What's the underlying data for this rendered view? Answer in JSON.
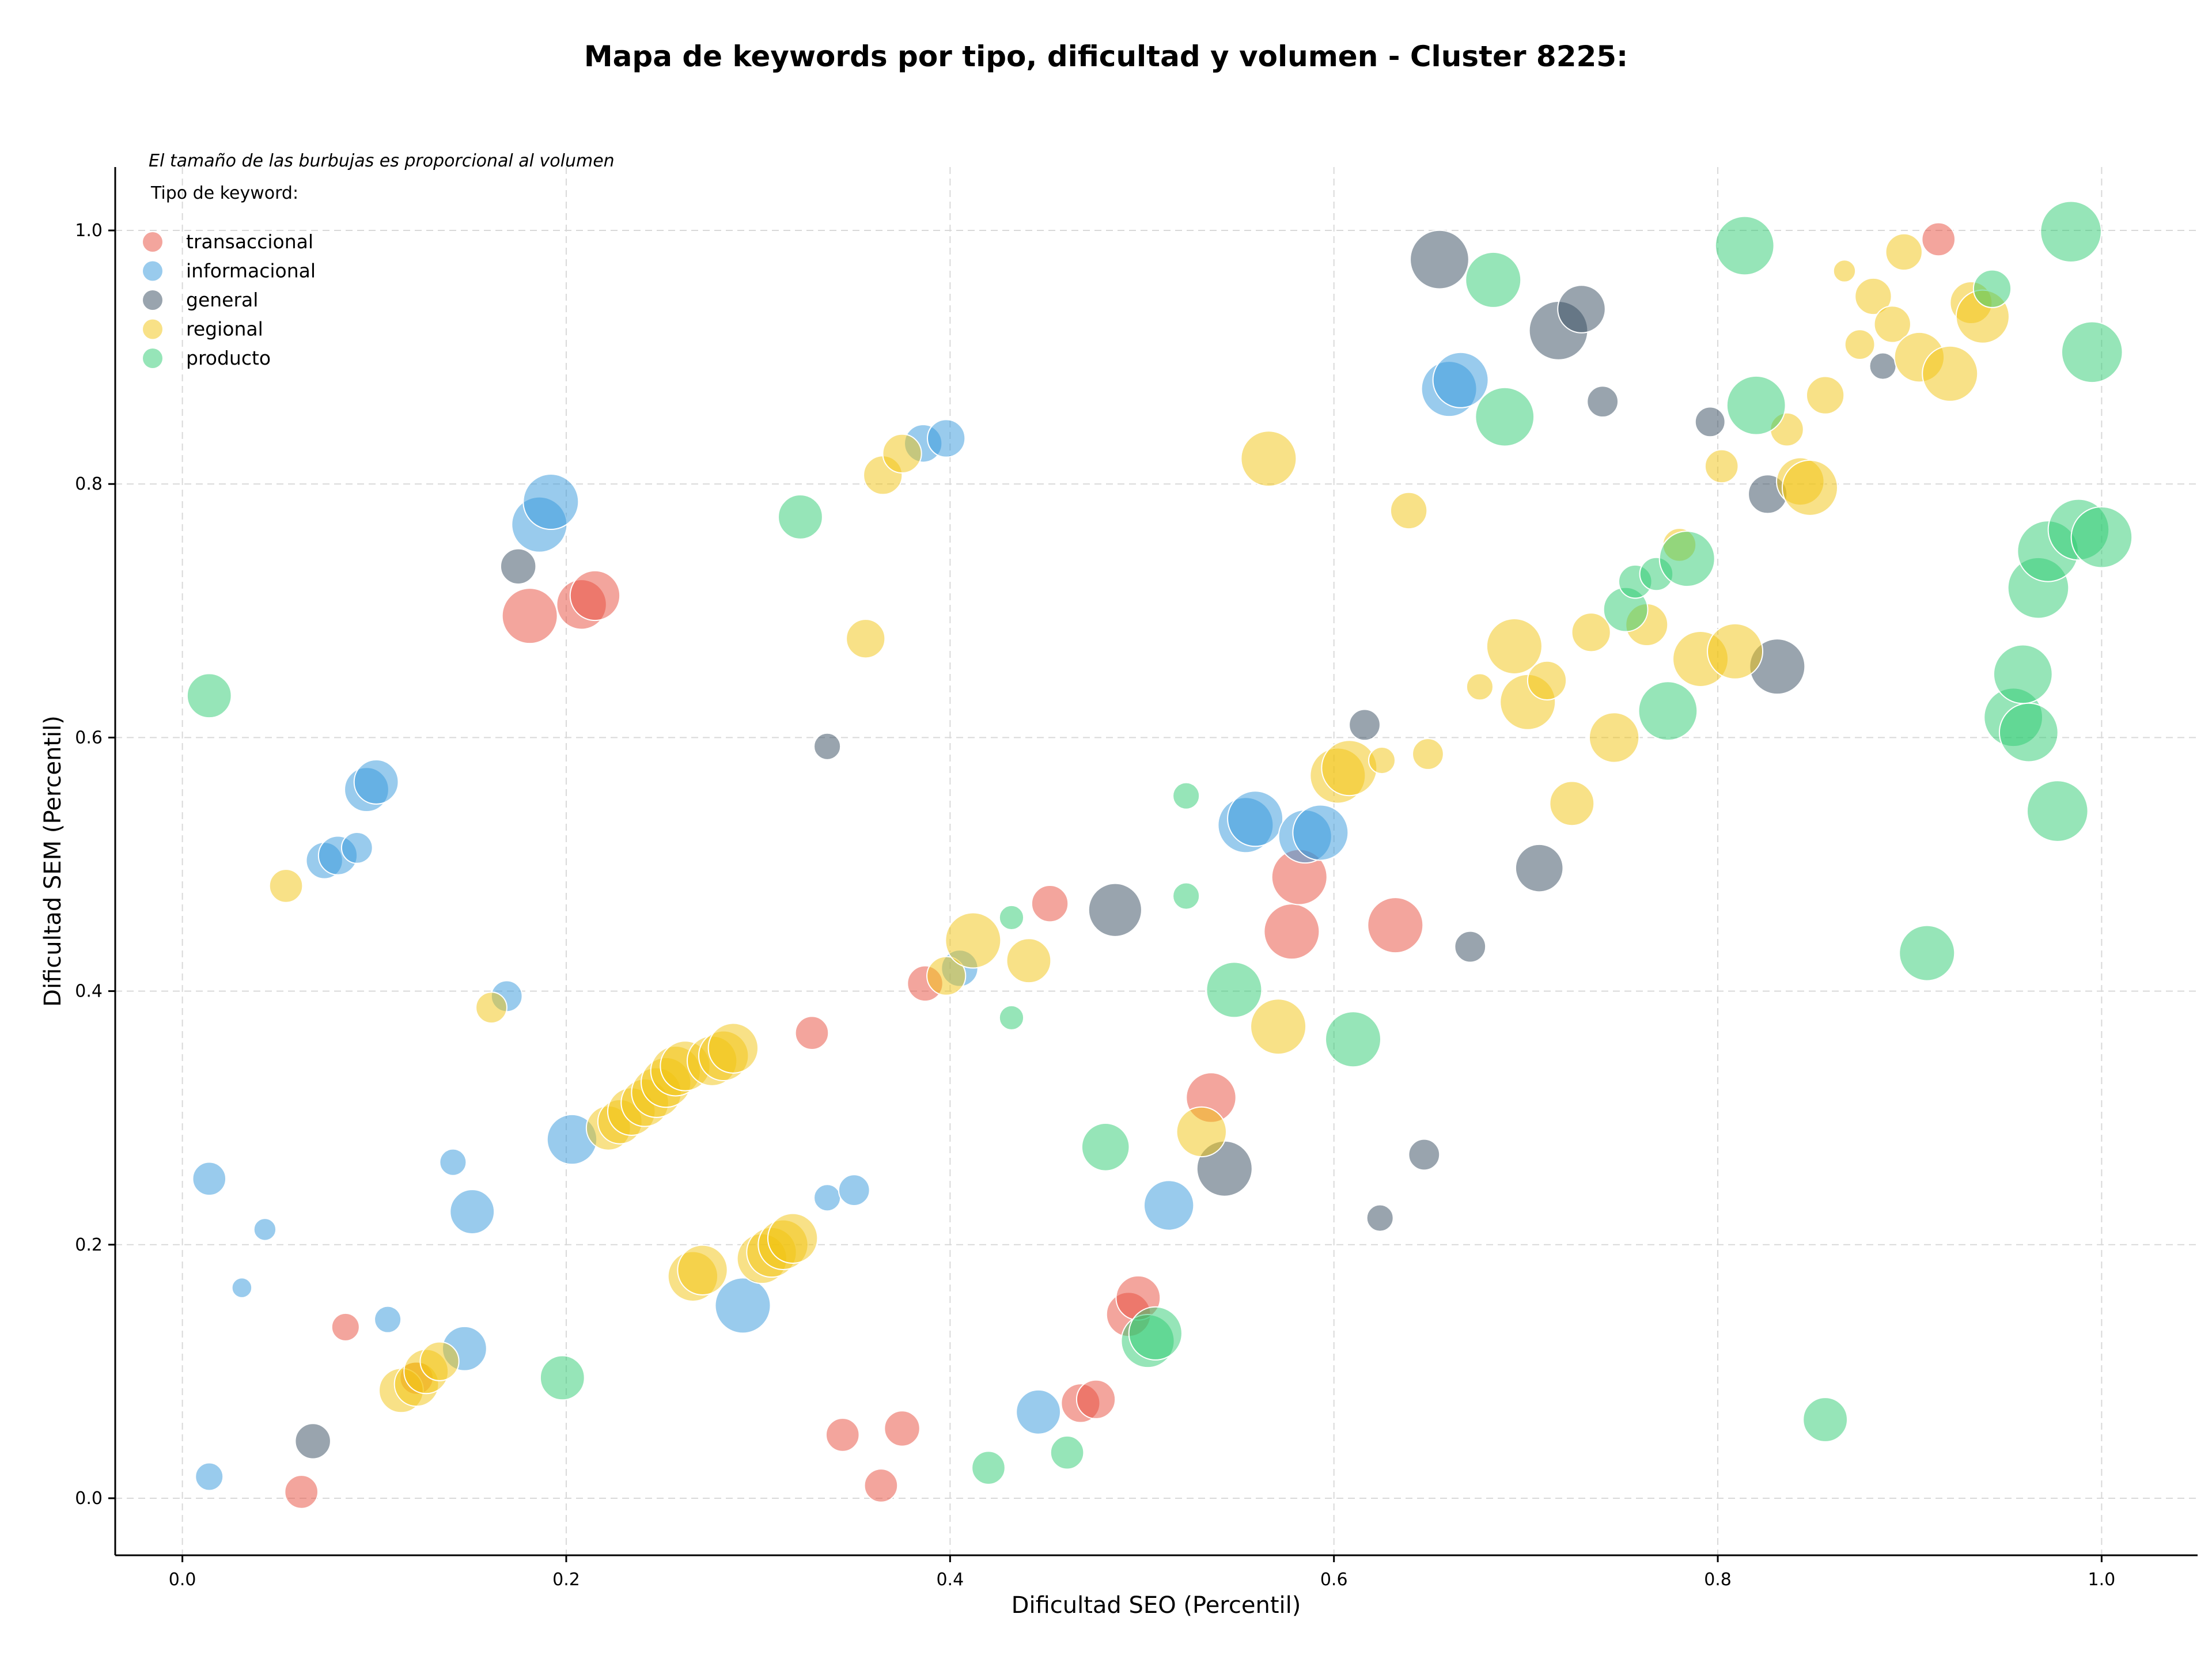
{
  "chart_data": {
    "type": "scatter",
    "title": "Mapa de keywords por tipo, dificultad y volumen - Cluster 8225:",
    "xlabel": "Dificultad SEO (Percentil)",
    "ylabel": "Dificultad SEM (Percentil)",
    "xlim": [
      -0.035,
      1.05
    ],
    "ylim": [
      -0.045,
      1.05
    ],
    "xticks": [
      0.0,
      0.2,
      0.4,
      0.6,
      0.8,
      1.0
    ],
    "yticks": [
      0.0,
      0.2,
      0.4,
      0.6,
      0.8,
      1.0
    ],
    "xtick_labels": [
      "0.0",
      "0.2",
      "0.4",
      "0.6",
      "0.8",
      "1.0"
    ],
    "ytick_labels": [
      "0.0",
      "0.2",
      "0.4",
      "0.6",
      "0.8",
      "1.0"
    ],
    "grid": true,
    "legend_placement": "top-left",
    "legend_note": "El tamaño de las burbujas es proporcional al volumen",
    "legend_title": "Tipo de keyword:",
    "series": [
      {
        "name": "transaccional",
        "color": "#e74c3c",
        "points": [
          [
            0.181,
            0.696,
            5
          ],
          [
            0.208,
            0.705,
            4.5
          ],
          [
            0.215,
            0.712,
            4.5
          ],
          [
            0.062,
            0.005,
            3
          ],
          [
            0.085,
            0.135,
            2.5
          ],
          [
            0.122,
            0.095,
            3
          ],
          [
            0.328,
            0.367,
            3
          ],
          [
            0.344,
            0.05,
            3
          ],
          [
            0.364,
            0.01,
            3
          ],
          [
            0.375,
            0.055,
            3.2
          ],
          [
            0.387,
            0.406,
            3.2
          ],
          [
            0.452,
            0.469,
            3.3
          ],
          [
            0.468,
            0.075,
            3.5
          ],
          [
            0.476,
            0.078,
            3.5
          ],
          [
            0.493,
            0.145,
            4
          ],
          [
            0.498,
            0.158,
            4
          ],
          [
            0.536,
            0.316,
            4.5
          ],
          [
            0.578,
            0.447,
            5
          ],
          [
            0.582,
            0.49,
            5
          ],
          [
            0.632,
            0.452,
            5
          ],
          [
            0.915,
            0.993,
            3
          ]
        ]
      },
      {
        "name": "informacional",
        "color": "#3498db",
        "points": [
          [
            0.014,
            0.017,
            2.5
          ],
          [
            0.014,
            0.252,
            3
          ],
          [
            0.043,
            0.212,
            2
          ],
          [
            0.031,
            0.166,
            1.8
          ],
          [
            0.074,
            0.503,
            3.3
          ],
          [
            0.081,
            0.507,
            3.5
          ],
          [
            0.091,
            0.513,
            2.8
          ],
          [
            0.096,
            0.559,
            4
          ],
          [
            0.101,
            0.565,
            4
          ],
          [
            0.107,
            0.141,
            2.4
          ],
          [
            0.141,
            0.265,
            2.4
          ],
          [
            0.151,
            0.226,
            4
          ],
          [
            0.147,
            0.118,
            4
          ],
          [
            0.169,
            0.396,
            2.8
          ],
          [
            0.186,
            0.768,
            5
          ],
          [
            0.192,
            0.786,
            5
          ],
          [
            0.203,
            0.283,
            4.5
          ],
          [
            0.292,
            0.152,
            5
          ],
          [
            0.336,
            0.237,
            2.4
          ],
          [
            0.35,
            0.243,
            2.8
          ],
          [
            0.386,
            0.832,
            3.4
          ],
          [
            0.398,
            0.836,
            3.4
          ],
          [
            0.405,
            0.418,
            3.3
          ],
          [
            0.446,
            0.068,
            4
          ],
          [
            0.514,
            0.231,
            4.5
          ],
          [
            0.554,
            0.531,
            5
          ],
          [
            0.559,
            0.536,
            5
          ],
          [
            0.585,
            0.522,
            4.8
          ],
          [
            0.593,
            0.525,
            5
          ],
          [
            0.66,
            0.875,
            5
          ],
          [
            0.666,
            0.882,
            5
          ]
        ]
      },
      {
        "name": "general",
        "color": "#34495e",
        "points": [
          [
            0.068,
            0.045,
            3.2
          ],
          [
            0.175,
            0.735,
            3.2
          ],
          [
            0.336,
            0.593,
            2.4
          ],
          [
            0.486,
            0.464,
            4.8
          ],
          [
            0.543,
            0.26,
            5
          ],
          [
            0.616,
            0.61,
            2.8
          ],
          [
            0.624,
            0.221,
            2.4
          ],
          [
            0.647,
            0.271,
            2.8
          ],
          [
            0.655,
            0.977,
            5.3
          ],
          [
            0.671,
            0.435,
            2.8
          ],
          [
            0.707,
            0.497,
            4.3
          ],
          [
            0.717,
            0.921,
            5.3
          ],
          [
            0.729,
            0.938,
            4.3
          ],
          [
            0.74,
            0.865,
            2.8
          ],
          [
            0.796,
            0.849,
            2.7
          ],
          [
            0.826,
            0.792,
            3.5
          ],
          [
            0.831,
            0.656,
            5
          ],
          [
            0.886,
            0.893,
            2.4
          ]
        ]
      },
      {
        "name": "regional",
        "color": "#f1c40f",
        "points": [
          [
            0.054,
            0.483,
            3
          ],
          [
            0.161,
            0.387,
            2.8
          ],
          [
            0.114,
            0.085,
            4
          ],
          [
            0.122,
            0.09,
            4
          ],
          [
            0.127,
            0.1,
            4
          ],
          [
            0.134,
            0.108,
            3.5
          ],
          [
            0.222,
            0.292,
            4
          ],
          [
            0.228,
            0.297,
            4
          ],
          [
            0.234,
            0.305,
            4.3
          ],
          [
            0.241,
            0.312,
            4.3
          ],
          [
            0.247,
            0.32,
            4.5
          ],
          [
            0.252,
            0.328,
            4.5
          ],
          [
            0.257,
            0.337,
            4.5
          ],
          [
            0.262,
            0.341,
            4.5
          ],
          [
            0.276,
            0.345,
            4.5
          ],
          [
            0.282,
            0.349,
            4.5
          ],
          [
            0.287,
            0.355,
            4.5
          ],
          [
            0.266,
            0.175,
            4.5
          ],
          [
            0.271,
            0.18,
            4.5
          ],
          [
            0.302,
            0.189,
            4.5
          ],
          [
            0.307,
            0.194,
            4.5
          ],
          [
            0.313,
            0.2,
            4.5
          ],
          [
            0.318,
            0.205,
            4.5
          ],
          [
            0.356,
            0.678,
            3.5
          ],
          [
            0.365,
            0.807,
            3.5
          ],
          [
            0.375,
            0.824,
            3.5
          ],
          [
            0.398,
            0.412,
            3.5
          ],
          [
            0.412,
            0.44,
            5
          ],
          [
            0.441,
            0.424,
            4
          ],
          [
            0.531,
            0.289,
            4.5
          ],
          [
            0.566,
            0.82,
            5
          ],
          [
            0.571,
            0.372,
            5
          ],
          [
            0.602,
            0.57,
            5
          ],
          [
            0.608,
            0.576,
            5
          ],
          [
            0.625,
            0.582,
            2.4
          ],
          [
            0.639,
            0.779,
            3.3
          ],
          [
            0.649,
            0.587,
            2.8
          ],
          [
            0.676,
            0.64,
            2.4
          ],
          [
            0.694,
            0.672,
            5
          ],
          [
            0.701,
            0.628,
            5
          ],
          [
            0.711,
            0.645,
            3.5
          ],
          [
            0.724,
            0.548,
            4
          ],
          [
            0.734,
            0.683,
            3.5
          ],
          [
            0.746,
            0.6,
            4.5
          ],
          [
            0.763,
            0.689,
            3.8
          ],
          [
            0.78,
            0.752,
            3
          ],
          [
            0.791,
            0.662,
            5
          ],
          [
            0.802,
            0.814,
            3
          ],
          [
            0.809,
            0.668,
            5
          ],
          [
            0.836,
            0.843,
            3
          ],
          [
            0.843,
            0.802,
            4.3
          ],
          [
            0.848,
            0.797,
            5
          ],
          [
            0.856,
            0.87,
            3.4
          ],
          [
            0.866,
            0.968,
            2
          ],
          [
            0.874,
            0.91,
            2.7
          ],
          [
            0.881,
            0.948,
            3.3
          ],
          [
            0.891,
            0.926,
            3.3
          ],
          [
            0.897,
            0.983,
            3.3
          ],
          [
            0.905,
            0.9,
            4.5
          ],
          [
            0.921,
            0.887,
            5
          ],
          [
            0.932,
            0.943,
            3.8
          ],
          [
            0.938,
            0.932,
            4.8
          ]
        ]
      },
      {
        "name": "producto",
        "color": "#2ecc71",
        "points": [
          [
            0.014,
            0.633,
            4
          ],
          [
            0.198,
            0.095,
            4
          ],
          [
            0.322,
            0.774,
            4
          ],
          [
            0.432,
            0.458,
            2.2
          ],
          [
            0.432,
            0.379,
            2.2
          ],
          [
            0.42,
            0.024,
            3
          ],
          [
            0.461,
            0.036,
            3
          ],
          [
            0.481,
            0.277,
            4.3
          ],
          [
            0.503,
            0.124,
            4.8
          ],
          [
            0.507,
            0.13,
            4.8
          ],
          [
            0.523,
            0.554,
            2.4
          ],
          [
            0.523,
            0.475,
            2.4
          ],
          [
            0.548,
            0.401,
            5
          ],
          [
            0.61,
            0.362,
            5
          ],
          [
            0.683,
            0.961,
            5
          ],
          [
            0.689,
            0.853,
            5.3
          ],
          [
            0.752,
            0.701,
            4
          ],
          [
            0.757,
            0.723,
            3
          ],
          [
            0.768,
            0.729,
            3
          ],
          [
            0.774,
            0.621,
            5.3
          ],
          [
            0.784,
            0.741,
            5
          ],
          [
            0.814,
            0.988,
            5.3
          ],
          [
            0.82,
            0.862,
            5.3
          ],
          [
            0.856,
            0.062,
            4
          ],
          [
            0.909,
            0.43,
            5
          ],
          [
            0.943,
            0.954,
            3.4
          ],
          [
            0.954,
            0.616,
            5.3
          ],
          [
            0.959,
            0.65,
            5.3
          ],
          [
            0.962,
            0.604,
            5.3
          ],
          [
            0.967,
            0.718,
            5.5
          ],
          [
            0.972,
            0.747,
            5.5
          ],
          [
            0.977,
            0.542,
            5.5
          ],
          [
            0.984,
            0.999,
            5.5
          ],
          [
            0.988,
            0.764,
            5.5
          ],
          [
            0.995,
            0.904,
            5.5
          ],
          [
            1.0,
            0.758,
            5.5
          ]
        ]
      }
    ]
  }
}
